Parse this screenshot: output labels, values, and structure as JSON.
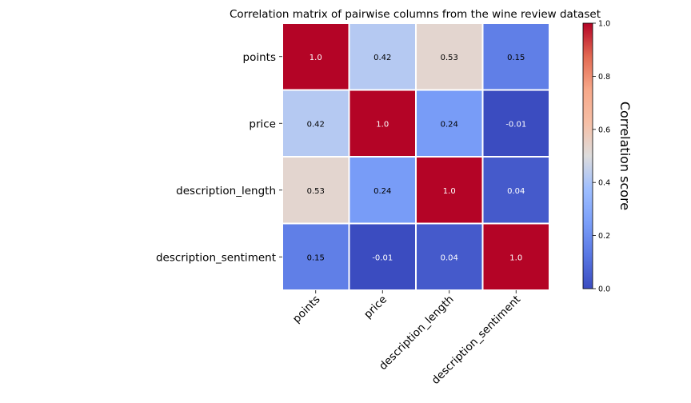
{
  "chart_data": {
    "type": "heatmap",
    "title": "Correlation matrix of pairwise columns from the wine review dataset",
    "row_labels": [
      "points",
      "price",
      "description_length",
      "description_sentiment"
    ],
    "col_labels": [
      "points",
      "price",
      "description_length",
      "description_sentiment"
    ],
    "values": [
      [
        1.0,
        0.42,
        0.53,
        0.15
      ],
      [
        0.42,
        1.0,
        0.24,
        -0.01
      ],
      [
        0.53,
        0.24,
        1.0,
        0.04
      ],
      [
        0.15,
        -0.01,
        0.04,
        1.0
      ]
    ],
    "cell_labels": [
      [
        "1.0",
        "0.42",
        "0.53",
        "0.15"
      ],
      [
        "0.42",
        "1.0",
        "0.24",
        "-0.01"
      ],
      [
        "0.53",
        "0.24",
        "1.0",
        "0.04"
      ],
      [
        "0.15",
        "-0.01",
        "0.04",
        "1.0"
      ]
    ],
    "colormap": "coolwarm",
    "vmin": 0.0,
    "vmax": 1.0,
    "colorbar": {
      "label": "Correlation score",
      "ticks": [
        0.0,
        0.2,
        0.4,
        0.6,
        0.8,
        1.0
      ],
      "tick_labels": [
        "0.0",
        "0.2",
        "0.4",
        "0.6",
        "0.8",
        "1.0"
      ]
    }
  }
}
